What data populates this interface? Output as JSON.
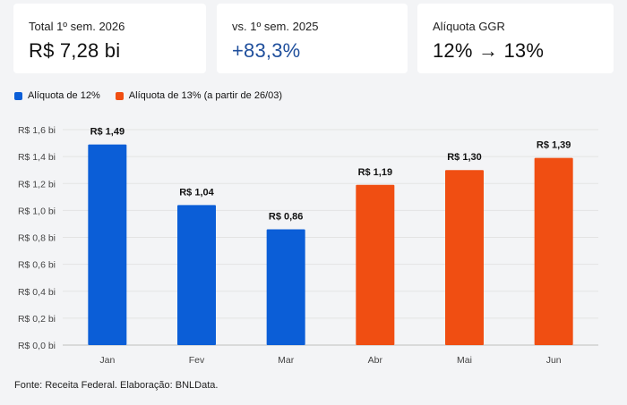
{
  "kpis": [
    {
      "label": "Total 1º sem. 2026",
      "value": "R$ 7,28 bi"
    },
    {
      "label": "vs. 1º sem. 2025",
      "value": "+83,3%"
    },
    {
      "label": "Alíquota GGR",
      "value": "12% → 13%"
    }
  ],
  "colors": {
    "series_12": "#0b5ed7",
    "series_13": "#f04e12",
    "kpi_positive": "#1f4f9c"
  },
  "source_note": "Fonte: Receita Federal. Elaboração: BNLData.",
  "chart_data": {
    "type": "bar",
    "categories": [
      "Jan",
      "Fev",
      "Mar",
      "Abr",
      "Mai",
      "Jun"
    ],
    "values": [
      1.49,
      1.04,
      0.86,
      1.19,
      1.3,
      1.39
    ],
    "value_labels": [
      "R$ 1,49",
      "R$ 1,04",
      "R$ 0,86",
      "R$ 1,19",
      "R$ 1,30",
      "R$ 1,39"
    ],
    "series": [
      {
        "name": "Alíquota de 12%",
        "color": "#0b5ed7",
        "categories": [
          "Jan",
          "Fev",
          "Mar"
        ]
      },
      {
        "name": "Alíquota de 13% (a partir de 26/03)",
        "color": "#f04e12",
        "categories": [
          "Abr",
          "Mai",
          "Jun"
        ]
      }
    ],
    "yticks": [
      0,
      0.2,
      0.4,
      0.6,
      0.8,
      1.0,
      1.2,
      1.4,
      1.6
    ],
    "ytick_labels": [
      "R$ 0,0 bi",
      "R$ 0,2 bi",
      "R$ 0,4 bi",
      "R$ 0,6 bi",
      "R$ 0,8 bi",
      "R$ 1,0 bi",
      "R$ 1,2 bi",
      "R$ 1,4 bi",
      "R$ 1,6 bi"
    ],
    "ylim": [
      0,
      1.6
    ],
    "grid": true,
    "legend": "top-left",
    "title": "",
    "xlabel": "",
    "ylabel": ""
  }
}
